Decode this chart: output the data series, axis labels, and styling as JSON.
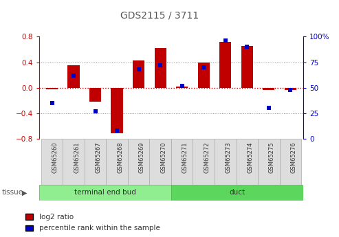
{
  "title": "GDS2115 / 3711",
  "samples": [
    "GSM65260",
    "GSM65261",
    "GSM65267",
    "GSM65268",
    "GSM65269",
    "GSM65270",
    "GSM65271",
    "GSM65272",
    "GSM65273",
    "GSM65274",
    "GSM65275",
    "GSM65276"
  ],
  "log2_ratio": [
    -0.03,
    0.35,
    -0.22,
    -0.72,
    0.43,
    0.62,
    0.02,
    0.4,
    0.72,
    0.65,
    -0.04,
    -0.04
  ],
  "percentile_rank": [
    35,
    62,
    27,
    8,
    68,
    72,
    52,
    70,
    96,
    90,
    30,
    48
  ],
  "tissue_groups": [
    {
      "label": "terminal end bud",
      "start": 0,
      "end": 6,
      "color": "#90EE90"
    },
    {
      "label": "duct",
      "start": 6,
      "end": 12,
      "color": "#5CD65C"
    }
  ],
  "bar_color": "#C00000",
  "dot_color": "#0000CC",
  "ylim_left": [
    -0.8,
    0.8
  ],
  "ylim_right": [
    0,
    100
  ],
  "yticks_left": [
    -0.8,
    -0.4,
    0.0,
    0.4,
    0.8
  ],
  "yticks_right": [
    0,
    25,
    50,
    75,
    100
  ],
  "ytick_labels_right": [
    "0",
    "25",
    "50",
    "75",
    "100%"
  ],
  "hline_color": "#CC0000",
  "grid_color": "#888888",
  "plot_bg": "#FFFFFF",
  "bar_width": 0.55,
  "tissue_label": "tissue",
  "legend_log2": "log2 ratio",
  "legend_pct": "percentile rank within the sample"
}
